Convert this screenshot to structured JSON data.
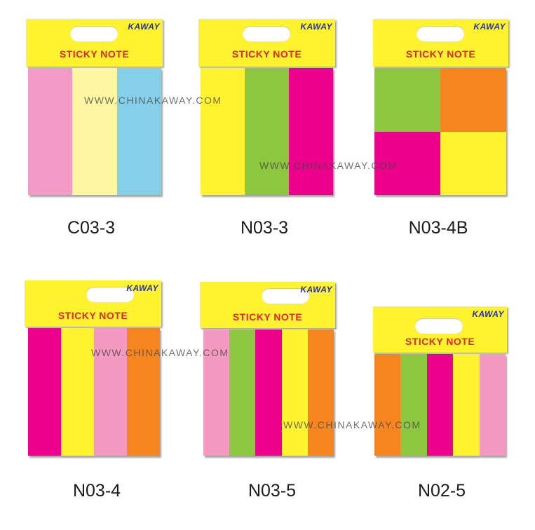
{
  "products": [
    {
      "brand": "KAWAY",
      "title": "STICKY NOTE",
      "label": "C03-3",
      "layout": "strips",
      "colors": [
        "#f19bc6",
        "#fdf7a1",
        "#86cfe9"
      ]
    },
    {
      "brand": "KAWAY",
      "title": "STICKY NOTE",
      "label": "N03-3",
      "layout": "strips",
      "colors": [
        "#fff22e",
        "#8dc63f",
        "#ec008c"
      ]
    },
    {
      "brand": "KAWAY",
      "title": "STICKY NOTE",
      "label": "N03-4B",
      "layout": "grid",
      "colors": [
        "#8dc63f",
        "#f7851f",
        "#ec008c",
        "#fff22e"
      ]
    },
    {
      "brand": "KAWAY",
      "title": "STICKY NOTE",
      "label": "N03-4",
      "layout": "strips",
      "colors": [
        "#ec008c",
        "#fff22e",
        "#f49ac1",
        "#f7851f"
      ]
    },
    {
      "brand": "KAWAY",
      "title": "STICKY NOTE",
      "label": "N03-5",
      "layout": "strips",
      "colors": [
        "#f49ac1",
        "#8dc63f",
        "#ec008c",
        "#fff22e",
        "#f7851f"
      ]
    },
    {
      "brand": "KAWAY",
      "title": "STICKY NOTE",
      "label": "N02-5",
      "layout": "strips",
      "colors": [
        "#f7851f",
        "#8dc63f",
        "#ec008c",
        "#fff22e",
        "#f49ac1"
      ]
    }
  ],
  "watermark": "WWW.CHINAKAWAY.COM"
}
